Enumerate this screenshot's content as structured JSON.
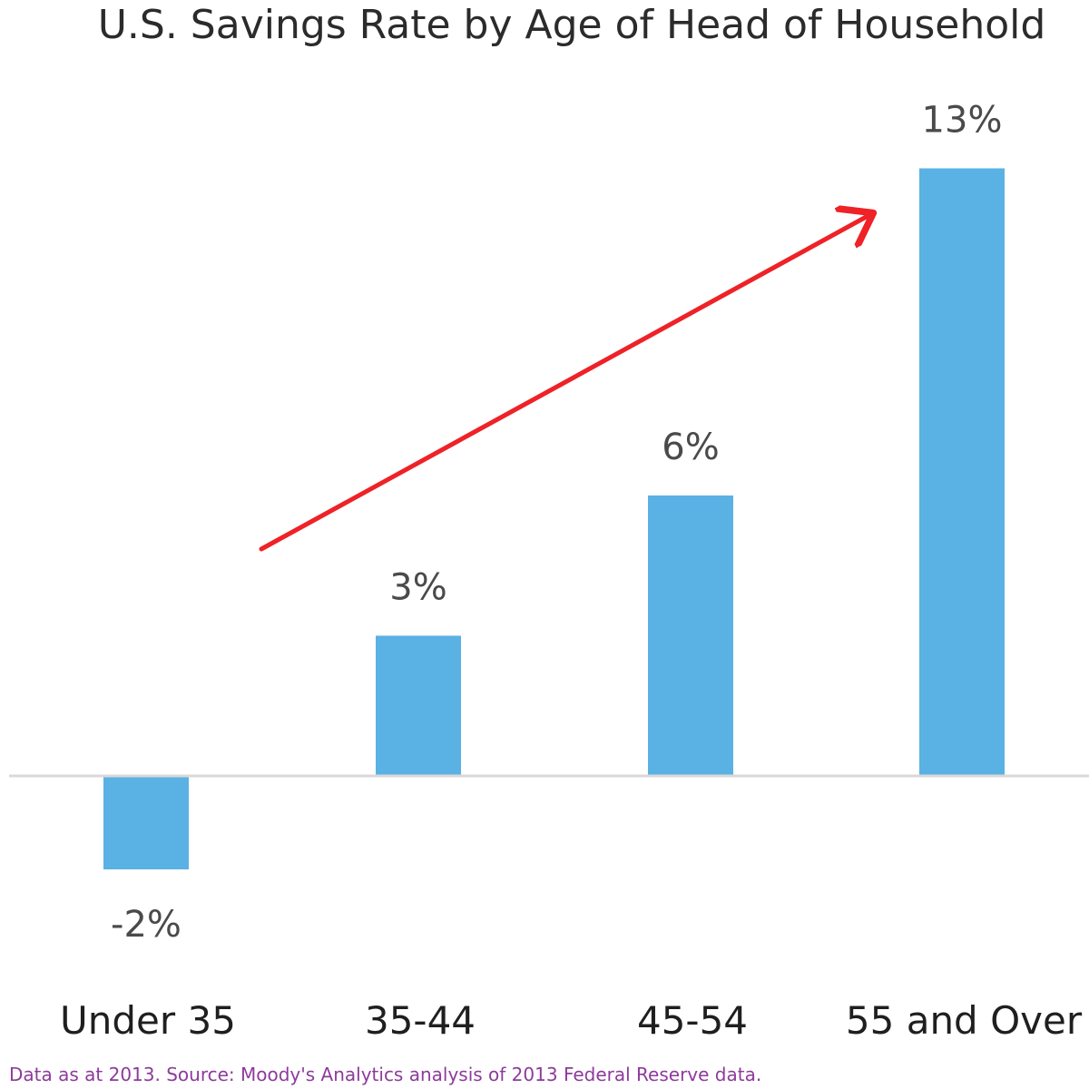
{
  "chart_data": {
    "type": "bar",
    "title": "U.S. Savings Rate by Age of Head of Household",
    "categories": [
      "Under 35",
      "35-44",
      "45-54",
      "55 and Over"
    ],
    "values": [
      -2,
      3,
      6,
      13
    ],
    "value_labels": [
      "-2%",
      "3%",
      "6%",
      "13%"
    ],
    "xlabel": "",
    "ylabel": "",
    "ylim": [
      -2,
      13
    ],
    "grid": false,
    "legend": "none",
    "annotation": "red arrow indicating rising trend",
    "colors": {
      "bar": "#5ab1e3",
      "arrow": "#ee2227",
      "baseline": "#d9d9d9"
    }
  },
  "footer": {
    "source": "Data as at 2013. Source: Moody's Analytics analysis of 2013 Federal Reserve data.",
    "color": "#8e3a9c"
  }
}
